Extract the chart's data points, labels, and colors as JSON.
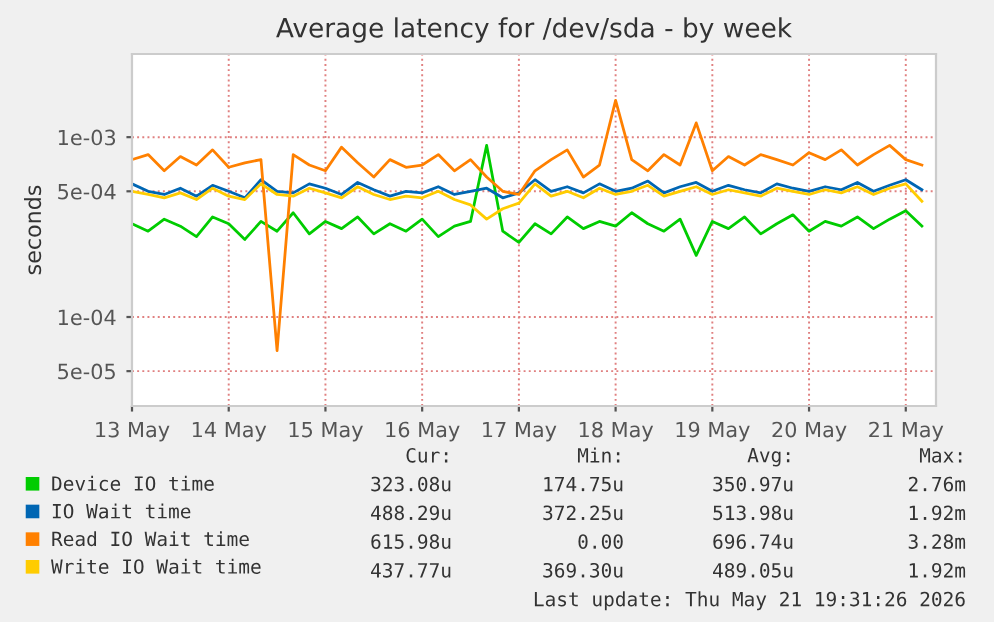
{
  "chart_data": {
    "type": "line",
    "title": "Average latency for /dev/sda - by week",
    "ylabel": "seconds",
    "log": "y",
    "grid": true,
    "legend": "bottom",
    "xlim": [
      "2026-05-13T12:00",
      "2026-05-21T19:30"
    ],
    "xticks": [
      {
        "value": "2026-05-13T12:00",
        "label": "13 May"
      },
      {
        "value": "2026-05-14T12:00",
        "label": "14 May"
      },
      {
        "value": "2026-05-15T12:00",
        "label": "15 May"
      },
      {
        "value": "2026-05-16T12:00",
        "label": "16 May"
      },
      {
        "value": "2026-05-17T12:00",
        "label": "17 May"
      },
      {
        "value": "2026-05-18T12:00",
        "label": "18 May"
      },
      {
        "value": "2026-05-19T12:00",
        "label": "19 May"
      },
      {
        "value": "2026-05-20T12:00",
        "label": "20 May"
      },
      {
        "value": "2026-05-21T12:00",
        "label": "21 May"
      }
    ],
    "ylim": [
      3.2e-05,
      0.0029
    ],
    "yticks": [
      {
        "value": 5e-05,
        "label": "5e-05"
      },
      {
        "value": 0.0001,
        "label": "1e-04"
      },
      {
        "value": 0.0005,
        "label": "5e-04"
      },
      {
        "value": 0.001,
        "label": "1e-03"
      }
    ],
    "x": [
      "2026-05-13T12:00",
      "2026-05-13T16:00",
      "2026-05-13T20:00",
      "2026-05-14T00:00",
      "2026-05-14T04:00",
      "2026-05-14T08:00",
      "2026-05-14T12:00",
      "2026-05-14T16:00",
      "2026-05-14T20:00",
      "2026-05-15T00:00",
      "2026-05-15T04:00",
      "2026-05-15T08:00",
      "2026-05-15T12:00",
      "2026-05-15T16:00",
      "2026-05-15T20:00",
      "2026-05-16T00:00",
      "2026-05-16T04:00",
      "2026-05-16T08:00",
      "2026-05-16T12:00",
      "2026-05-16T16:00",
      "2026-05-16T20:00",
      "2026-05-17T00:00",
      "2026-05-17T04:00",
      "2026-05-17T08:00",
      "2026-05-17T12:00",
      "2026-05-17T16:00",
      "2026-05-17T20:00",
      "2026-05-18T00:00",
      "2026-05-18T04:00",
      "2026-05-18T08:00",
      "2026-05-18T12:00",
      "2026-05-18T16:00",
      "2026-05-18T20:00",
      "2026-05-19T00:00",
      "2026-05-19T04:00",
      "2026-05-19T08:00",
      "2026-05-19T12:00",
      "2026-05-19T16:00",
      "2026-05-19T20:00",
      "2026-05-20T00:00",
      "2026-05-20T04:00",
      "2026-05-20T08:00",
      "2026-05-20T12:00",
      "2026-05-20T16:00",
      "2026-05-20T20:00",
      "2026-05-21T00:00",
      "2026-05-21T04:00",
      "2026-05-21T08:00",
      "2026-05-21T12:00",
      "2026-05-21T16:00"
    ],
    "series": [
      {
        "name": "Device IO time",
        "color": "#00cc00",
        "values": [
          0.00033,
          0.0003,
          0.00035,
          0.00032,
          0.00028,
          0.00036,
          0.00033,
          0.00027,
          0.00034,
          0.0003,
          0.00038,
          0.00029,
          0.00034,
          0.00031,
          0.00036,
          0.00029,
          0.00033,
          0.0003,
          0.00035,
          0.00028,
          0.00032,
          0.00034,
          0.0009,
          0.0003,
          0.00026,
          0.00033,
          0.00029,
          0.00036,
          0.00031,
          0.00034,
          0.00032,
          0.00038,
          0.00033,
          0.0003,
          0.00035,
          0.00022,
          0.00034,
          0.00031,
          0.00036,
          0.00029,
          0.00033,
          0.00037,
          0.0003,
          0.00034,
          0.00032,
          0.00036,
          0.00031,
          0.00035,
          0.00039,
          0.00032
        ]
      },
      {
        "name": "IO Wait time",
        "color": "#0066b3",
        "values": [
          0.00055,
          0.0005,
          0.00048,
          0.00052,
          0.00047,
          0.00054,
          0.0005,
          0.00046,
          0.00058,
          0.0005,
          0.00049,
          0.00055,
          0.00052,
          0.00048,
          0.00056,
          0.00051,
          0.00047,
          0.0005,
          0.00049,
          0.00053,
          0.00048,
          0.0005,
          0.00052,
          0.00046,
          0.00049,
          0.00058,
          0.0005,
          0.00053,
          0.00049,
          0.00055,
          0.0005,
          0.00052,
          0.00057,
          0.00049,
          0.00053,
          0.00056,
          0.0005,
          0.00054,
          0.00051,
          0.00049,
          0.00055,
          0.00052,
          0.0005,
          0.00053,
          0.00051,
          0.00056,
          0.0005,
          0.00054,
          0.00058,
          0.00051
        ]
      },
      {
        "name": "Read IO Wait time",
        "color": "#ff8000",
        "values": [
          0.00075,
          0.0008,
          0.00065,
          0.00078,
          0.0007,
          0.00085,
          0.00068,
          0.00072,
          0.00075,
          6.5e-05,
          0.0008,
          0.0007,
          0.00065,
          0.00088,
          0.00072,
          0.0006,
          0.00075,
          0.00068,
          0.0007,
          0.0008,
          0.00065,
          0.00075,
          0.0006,
          0.0005,
          0.00048,
          0.00065,
          0.00075,
          0.00085,
          0.0006,
          0.0007,
          0.0016,
          0.00075,
          0.00065,
          0.0008,
          0.0007,
          0.0012,
          0.00065,
          0.00078,
          0.0007,
          0.0008,
          0.00075,
          0.0007,
          0.00082,
          0.00075,
          0.00085,
          0.0007,
          0.0008,
          0.0009,
          0.00075,
          0.0007
        ]
      },
      {
        "name": "Write IO Wait time",
        "color": "#ffcc00",
        "values": [
          0.0005,
          0.00048,
          0.00046,
          0.00049,
          0.00045,
          0.00052,
          0.00047,
          0.00045,
          0.00055,
          0.00048,
          0.00047,
          0.00052,
          0.00049,
          0.00046,
          0.00053,
          0.00048,
          0.00045,
          0.00047,
          0.00046,
          0.0005,
          0.00045,
          0.00042,
          0.00035,
          0.0004,
          0.00043,
          0.00055,
          0.00047,
          0.0005,
          0.00046,
          0.00052,
          0.00048,
          0.0005,
          0.00054,
          0.00047,
          0.0005,
          0.00053,
          0.00048,
          0.00051,
          0.00049,
          0.00047,
          0.00052,
          0.0005,
          0.00048,
          0.00051,
          0.00049,
          0.00053,
          0.00048,
          0.00052,
          0.00055,
          0.00044
        ]
      }
    ],
    "annotations": [
      "Cur:",
      "Min:",
      "Avg:",
      "Max:",
      "323.08u",
      "174.75u",
      "350.97u",
      "2.76m",
      "488.29u",
      "372.25u",
      "513.98u",
      "1.92m",
      "615.98u",
      "0.00",
      "696.74u",
      "3.28m",
      "437.77u",
      "369.30u",
      "489.05u",
      "1.92m",
      "Last update: Thu May 21 19:31:26 2026"
    ]
  }
}
